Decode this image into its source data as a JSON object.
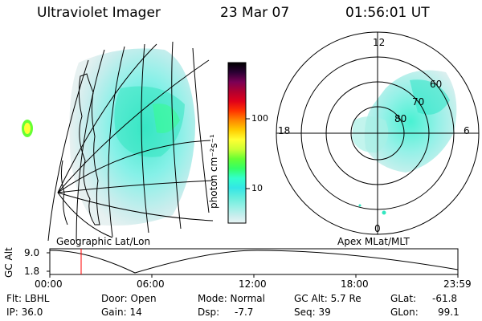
{
  "header": {
    "instrument": "Ultraviolet Imager",
    "date": "23 Mar 07",
    "time": "01:56:01 UT"
  },
  "colorbar": {
    "unit_label": "photon cm⁻²s⁻¹",
    "tick_100": "100",
    "tick_10": "10",
    "colors": [
      "#000000",
      "#2a0033",
      "#7a0055",
      "#b00030",
      "#e0001a",
      "#ff3300",
      "#ff8800",
      "#ffcc00",
      "#ffff33",
      "#ccff33",
      "#66ff33",
      "#33ff66",
      "#33ffcc",
      "#33e6e6",
      "#66eedd",
      "#99f0e6",
      "#cdeeee",
      "#e8f4f4"
    ]
  },
  "left_panel": {
    "label": "Geographic Lat/Lon"
  },
  "right_panel": {
    "label": "Apex MLat/MLT",
    "mlt_12": "12",
    "mlt_18": "18",
    "mlt_6": "6",
    "mlt_0": "0",
    "lat_60": "60",
    "lat_70": "70",
    "lat_80": "80"
  },
  "altitude_plot": {
    "ylabel": "GC Alt",
    "ytick_top": "9.0",
    "ytick_bottom": "1.8",
    "xticks": [
      "00:00",
      "06:00",
      "12:00",
      "18:00",
      "23:59"
    ]
  },
  "info": {
    "filter": "Flt: LBHL",
    "ip": "IP: 36.0",
    "door": "Door: Open",
    "gain": "Gain: 14",
    "mode": "Mode: Normal",
    "dsp_label": "Dsp:",
    "dsp_value": "-7.7",
    "gc_alt": "GC Alt: 5.7 Re",
    "seq": "Seq: 39",
    "glat_label": "GLat:",
    "glat_value": "-61.8",
    "glon_label": "GLon:",
    "glon_value": "99.1"
  }
}
